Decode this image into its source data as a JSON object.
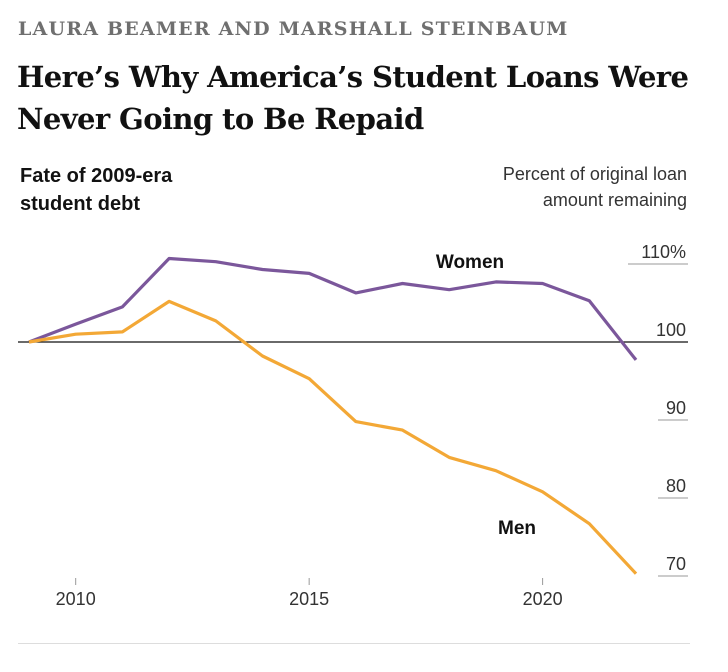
{
  "byline": "LAURA BEAMER AND MARSHALL STEINBAUM",
  "headline": "Here’s Why America’s Student Loans Were Never Going to Be Repaid",
  "chart_data": {
    "type": "line",
    "title": "Fate of 2009-era student debt",
    "ylabel": "Percent of original loan amount remaining",
    "xlim": [
      2008.5,
      2022.2
    ],
    "ylim": [
      70,
      110
    ],
    "yticks": [
      {
        "value": 110,
        "label": "110%"
      },
      {
        "value": 100,
        "label": "100"
      },
      {
        "value": 90,
        "label": "90"
      },
      {
        "value": 80,
        "label": "80"
      },
      {
        "value": 70,
        "label": "70"
      }
    ],
    "xticks": [
      {
        "value": 2010,
        "label": "2010"
      },
      {
        "value": 2015,
        "label": "2015"
      },
      {
        "value": 2020,
        "label": "2020"
      }
    ],
    "baseline": 100,
    "series": [
      {
        "name": "Women",
        "color": "#7b579b",
        "x": [
          2009,
          2010,
          2011,
          2012,
          2013,
          2014,
          2015,
          2016,
          2017,
          2018,
          2019,
          2020,
          2021,
          2022
        ],
        "values": [
          100,
          102.3,
          104.5,
          110.7,
          110.3,
          109.3,
          108.8,
          106.3,
          107.5,
          106.7,
          107.7,
          107.5,
          105.3,
          97.7
        ]
      },
      {
        "name": "Men",
        "color": "#f3a836",
        "x": [
          2009,
          2010,
          2011,
          2012,
          2013,
          2014,
          2015,
          2016,
          2017,
          2018,
          2019,
          2020,
          2021,
          2022
        ],
        "values": [
          100,
          101,
          101.3,
          105.2,
          102.7,
          98.2,
          95.3,
          89.8,
          88.7,
          85.2,
          83.5,
          80.8,
          76.7,
          70.3
        ]
      }
    ]
  }
}
